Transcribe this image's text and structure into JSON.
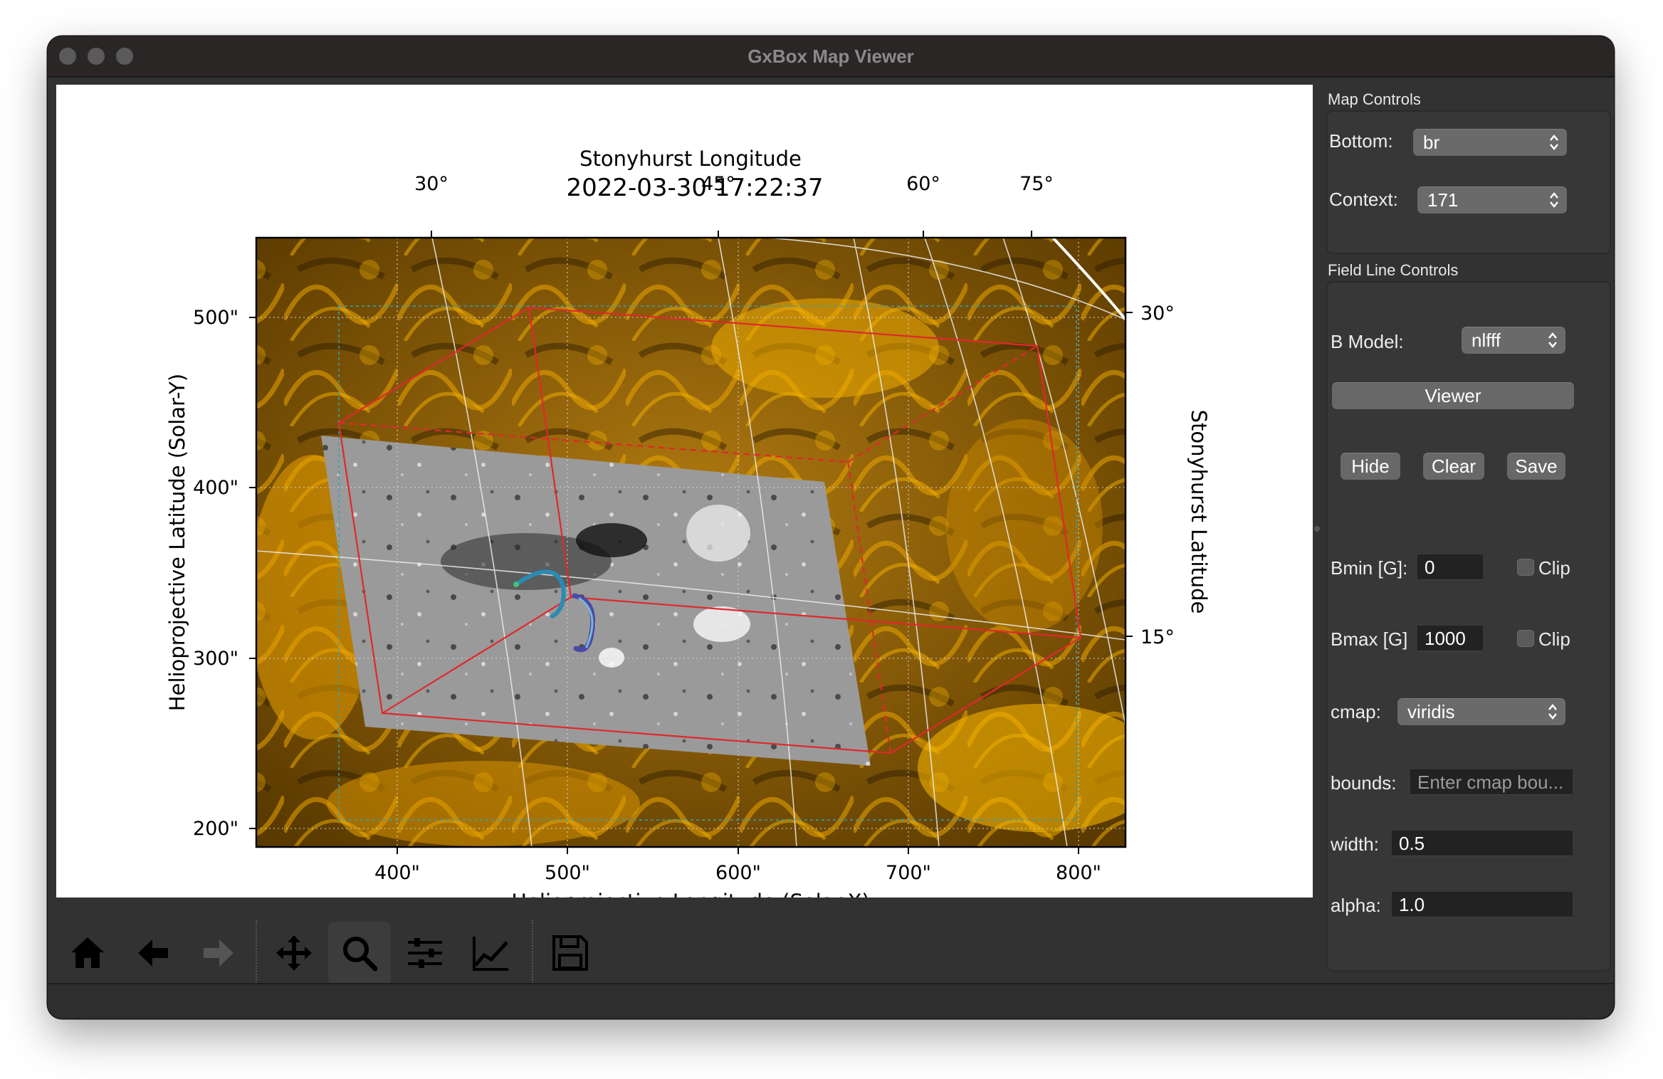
{
  "window": {
    "title": "GxBox Map Viewer"
  },
  "plot": {
    "title": "2022-03-30 17:22:37",
    "top_axis_label": "Stonyhurst Longitude",
    "right_axis_label": "Stonyhurst Latitude",
    "xlabel": "Helioprojective Longitude (Solar-X)",
    "ylabel": "Helioprojective Latitude (Solar-Y)",
    "x_ticks": [
      "400\"",
      "500\"",
      "600\"",
      "700\"",
      "800\""
    ],
    "y_ticks": [
      "500\"",
      "400\"",
      "300\"",
      "200\""
    ],
    "top_ticks": [
      "30°",
      "45°",
      "60°",
      "75°"
    ],
    "right_ticks": [
      "30°",
      "15°"
    ],
    "xlim": [
      318,
      828
    ],
    "ylim": [
      190,
      548
    ],
    "context_colormap": "#e8a200",
    "box_color": "#e0282c"
  },
  "toolbar": {
    "icons": [
      "home-icon",
      "back-arrow-icon",
      "forward-arrow-icon",
      "pan-icon",
      "zoom-icon",
      "subplots-icon",
      "customize-icon",
      "save-icon"
    ]
  },
  "panel": {
    "map_controls": {
      "title": "Map Controls",
      "bottom_label": "Bottom:",
      "bottom_value": "br",
      "context_label": "Context:",
      "context_value": "171"
    },
    "field_line_controls": {
      "title": "Field Line Controls",
      "b_model_label": "B Model:",
      "b_model_value": "nlfff",
      "viewer_label": "Viewer",
      "hide_label": "Hide",
      "clear_label": "Clear",
      "save_label": "Save",
      "bmin_label": "Bmin [G]:",
      "bmin_value": "0",
      "bmax_label": "Bmax [G]",
      "bmax_value": "1000",
      "clip_label": "Clip",
      "cmap_label": "cmap:",
      "cmap_value": "viridis",
      "bounds_label": "bounds:",
      "bounds_placeholder": "Enter cmap bou...",
      "width_label": "width:",
      "width_value": "0.5",
      "alpha_label": "alpha:",
      "alpha_value": "1.0"
    }
  }
}
